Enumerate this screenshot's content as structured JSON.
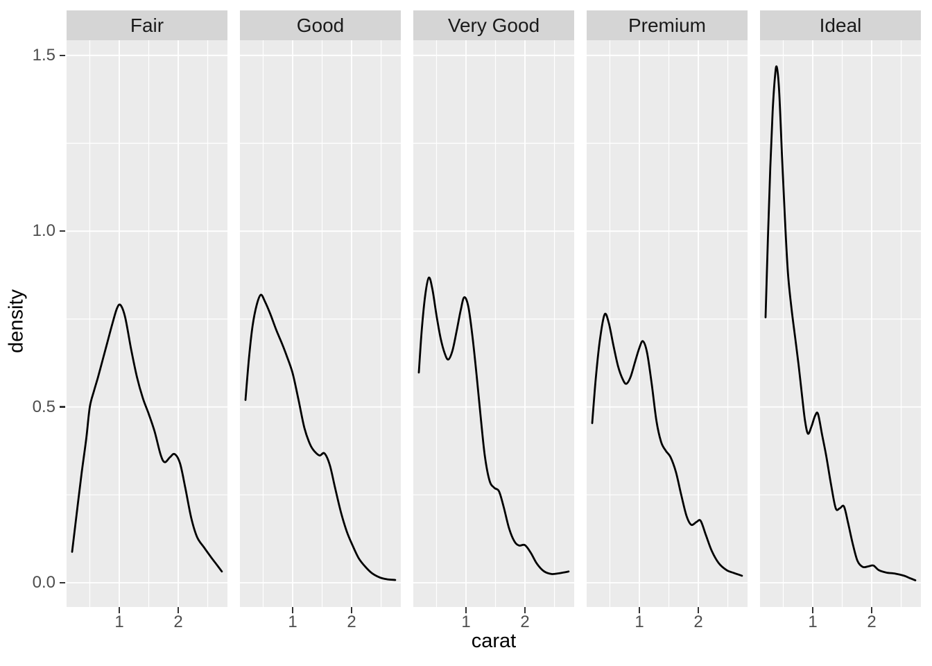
{
  "chart_data": {
    "type": "line",
    "subtype": "faceted-density",
    "title": "",
    "xlabel": "carat",
    "ylabel": "density",
    "facet_variable": "cut",
    "facets": [
      "Fair",
      "Good",
      "Very Good",
      "Premium",
      "Ideal"
    ],
    "x_ticks": [
      1,
      2
    ],
    "x_tick_labels": [
      "1",
      "2"
    ],
    "x_minor_ticks": [
      0.5,
      1.5,
      2.5
    ],
    "y_ticks": [
      0.0,
      0.5,
      1.0,
      1.5
    ],
    "y_tick_labels": [
      "0.0",
      "0.5",
      "1.0",
      "1.5"
    ],
    "y_minor_ticks": [
      0.25,
      0.75,
      1.25
    ],
    "xlim": [
      0.106,
      2.835
    ],
    "ylim": [
      -0.069,
      1.543
    ],
    "grid": true,
    "legend_position": "none",
    "series": [
      {
        "name": "Fair",
        "points": [
          [
            0.2,
            0.088
          ],
          [
            0.28,
            0.2
          ],
          [
            0.36,
            0.31
          ],
          [
            0.44,
            0.41
          ],
          [
            0.5,
            0.5
          ],
          [
            0.57,
            0.545
          ],
          [
            0.64,
            0.585
          ],
          [
            0.72,
            0.635
          ],
          [
            0.8,
            0.685
          ],
          [
            0.88,
            0.735
          ],
          [
            0.96,
            0.78
          ],
          [
            1.02,
            0.79
          ],
          [
            1.1,
            0.755
          ],
          [
            1.2,
            0.665
          ],
          [
            1.3,
            0.585
          ],
          [
            1.4,
            0.525
          ],
          [
            1.5,
            0.48
          ],
          [
            1.6,
            0.43
          ],
          [
            1.7,
            0.365
          ],
          [
            1.77,
            0.343
          ],
          [
            1.86,
            0.357
          ],
          [
            1.94,
            0.366
          ],
          [
            2.03,
            0.34
          ],
          [
            2.12,
            0.27
          ],
          [
            2.22,
            0.185
          ],
          [
            2.32,
            0.13
          ],
          [
            2.44,
            0.1
          ],
          [
            2.56,
            0.072
          ],
          [
            2.66,
            0.05
          ],
          [
            2.74,
            0.032
          ]
        ]
      },
      {
        "name": "Good",
        "points": [
          [
            0.2,
            0.52
          ],
          [
            0.26,
            0.64
          ],
          [
            0.32,
            0.73
          ],
          [
            0.39,
            0.79
          ],
          [
            0.46,
            0.819
          ],
          [
            0.53,
            0.8
          ],
          [
            0.62,
            0.765
          ],
          [
            0.72,
            0.72
          ],
          [
            0.82,
            0.68
          ],
          [
            0.9,
            0.645
          ],
          [
            1.0,
            0.596
          ],
          [
            1.1,
            0.52
          ],
          [
            1.2,
            0.44
          ],
          [
            1.3,
            0.392
          ],
          [
            1.38,
            0.372
          ],
          [
            1.46,
            0.362
          ],
          [
            1.54,
            0.368
          ],
          [
            1.63,
            0.335
          ],
          [
            1.72,
            0.27
          ],
          [
            1.82,
            0.2
          ],
          [
            1.92,
            0.145
          ],
          [
            2.02,
            0.105
          ],
          [
            2.12,
            0.07
          ],
          [
            2.22,
            0.048
          ],
          [
            2.34,
            0.028
          ],
          [
            2.48,
            0.015
          ],
          [
            2.6,
            0.01
          ],
          [
            2.74,
            0.008
          ]
        ]
      },
      {
        "name": "Very Good",
        "points": [
          [
            0.2,
            0.598
          ],
          [
            0.25,
            0.72
          ],
          [
            0.31,
            0.82
          ],
          [
            0.37,
            0.868
          ],
          [
            0.43,
            0.835
          ],
          [
            0.5,
            0.76
          ],
          [
            0.57,
            0.695
          ],
          [
            0.64,
            0.652
          ],
          [
            0.7,
            0.635
          ],
          [
            0.77,
            0.66
          ],
          [
            0.84,
            0.715
          ],
          [
            0.91,
            0.775
          ],
          [
            0.97,
            0.812
          ],
          [
            1.04,
            0.785
          ],
          [
            1.11,
            0.7
          ],
          [
            1.18,
            0.59
          ],
          [
            1.25,
            0.47
          ],
          [
            1.32,
            0.36
          ],
          [
            1.4,
            0.29
          ],
          [
            1.48,
            0.27
          ],
          [
            1.56,
            0.26
          ],
          [
            1.64,
            0.215
          ],
          [
            1.73,
            0.155
          ],
          [
            1.82,
            0.118
          ],
          [
            1.9,
            0.106
          ],
          [
            2.0,
            0.107
          ],
          [
            2.1,
            0.085
          ],
          [
            2.2,
            0.055
          ],
          [
            2.32,
            0.033
          ],
          [
            2.45,
            0.025
          ],
          [
            2.58,
            0.027
          ],
          [
            2.68,
            0.03
          ],
          [
            2.74,
            0.032
          ]
        ]
      },
      {
        "name": "Premium",
        "points": [
          [
            0.2,
            0.454
          ],
          [
            0.26,
            0.58
          ],
          [
            0.33,
            0.69
          ],
          [
            0.41,
            0.763
          ],
          [
            0.48,
            0.74
          ],
          [
            0.56,
            0.675
          ],
          [
            0.64,
            0.615
          ],
          [
            0.72,
            0.578
          ],
          [
            0.78,
            0.566
          ],
          [
            0.85,
            0.585
          ],
          [
            0.93,
            0.63
          ],
          [
            1.0,
            0.668
          ],
          [
            1.06,
            0.687
          ],
          [
            1.13,
            0.655
          ],
          [
            1.21,
            0.565
          ],
          [
            1.29,
            0.46
          ],
          [
            1.37,
            0.4
          ],
          [
            1.45,
            0.375
          ],
          [
            1.53,
            0.357
          ],
          [
            1.62,
            0.315
          ],
          [
            1.71,
            0.25
          ],
          [
            1.8,
            0.19
          ],
          [
            1.88,
            0.165
          ],
          [
            1.97,
            0.173
          ],
          [
            2.04,
            0.176
          ],
          [
            2.13,
            0.135
          ],
          [
            2.23,
            0.09
          ],
          [
            2.35,
            0.055
          ],
          [
            2.48,
            0.036
          ],
          [
            2.6,
            0.028
          ],
          [
            2.74,
            0.02
          ]
        ]
      },
      {
        "name": "Ideal",
        "points": [
          [
            0.2,
            0.755
          ],
          [
            0.24,
            0.98
          ],
          [
            0.28,
            1.18
          ],
          [
            0.32,
            1.34
          ],
          [
            0.36,
            1.44
          ],
          [
            0.39,
            1.467
          ],
          [
            0.43,
            1.4
          ],
          [
            0.48,
            1.21
          ],
          [
            0.53,
            1.03
          ],
          [
            0.58,
            0.88
          ],
          [
            0.64,
            0.78
          ],
          [
            0.7,
            0.7
          ],
          [
            0.76,
            0.62
          ],
          [
            0.82,
            0.53
          ],
          [
            0.87,
            0.46
          ],
          [
            0.92,
            0.424
          ],
          [
            0.98,
            0.445
          ],
          [
            1.04,
            0.475
          ],
          [
            1.09,
            0.48
          ],
          [
            1.16,
            0.42
          ],
          [
            1.23,
            0.36
          ],
          [
            1.31,
            0.28
          ],
          [
            1.39,
            0.212
          ],
          [
            1.46,
            0.212
          ],
          [
            1.53,
            0.217
          ],
          [
            1.6,
            0.17
          ],
          [
            1.68,
            0.11
          ],
          [
            1.76,
            0.062
          ],
          [
            1.85,
            0.045
          ],
          [
            1.95,
            0.047
          ],
          [
            2.03,
            0.049
          ],
          [
            2.12,
            0.036
          ],
          [
            2.25,
            0.029
          ],
          [
            2.4,
            0.026
          ],
          [
            2.55,
            0.02
          ],
          [
            2.65,
            0.013
          ],
          [
            2.74,
            0.007
          ]
        ]
      }
    ]
  },
  "style": {
    "panel_bg": "#EBEBEB",
    "strip_bg": "#D5D5D5",
    "grid_color": "#FFFFFF",
    "curve_color": "#000000",
    "tick_mark_color": "#333333",
    "axis_text_color": "#4D4D4D",
    "strip_text_color": "#1A1A1A",
    "axis_title_color": "#000000"
  }
}
